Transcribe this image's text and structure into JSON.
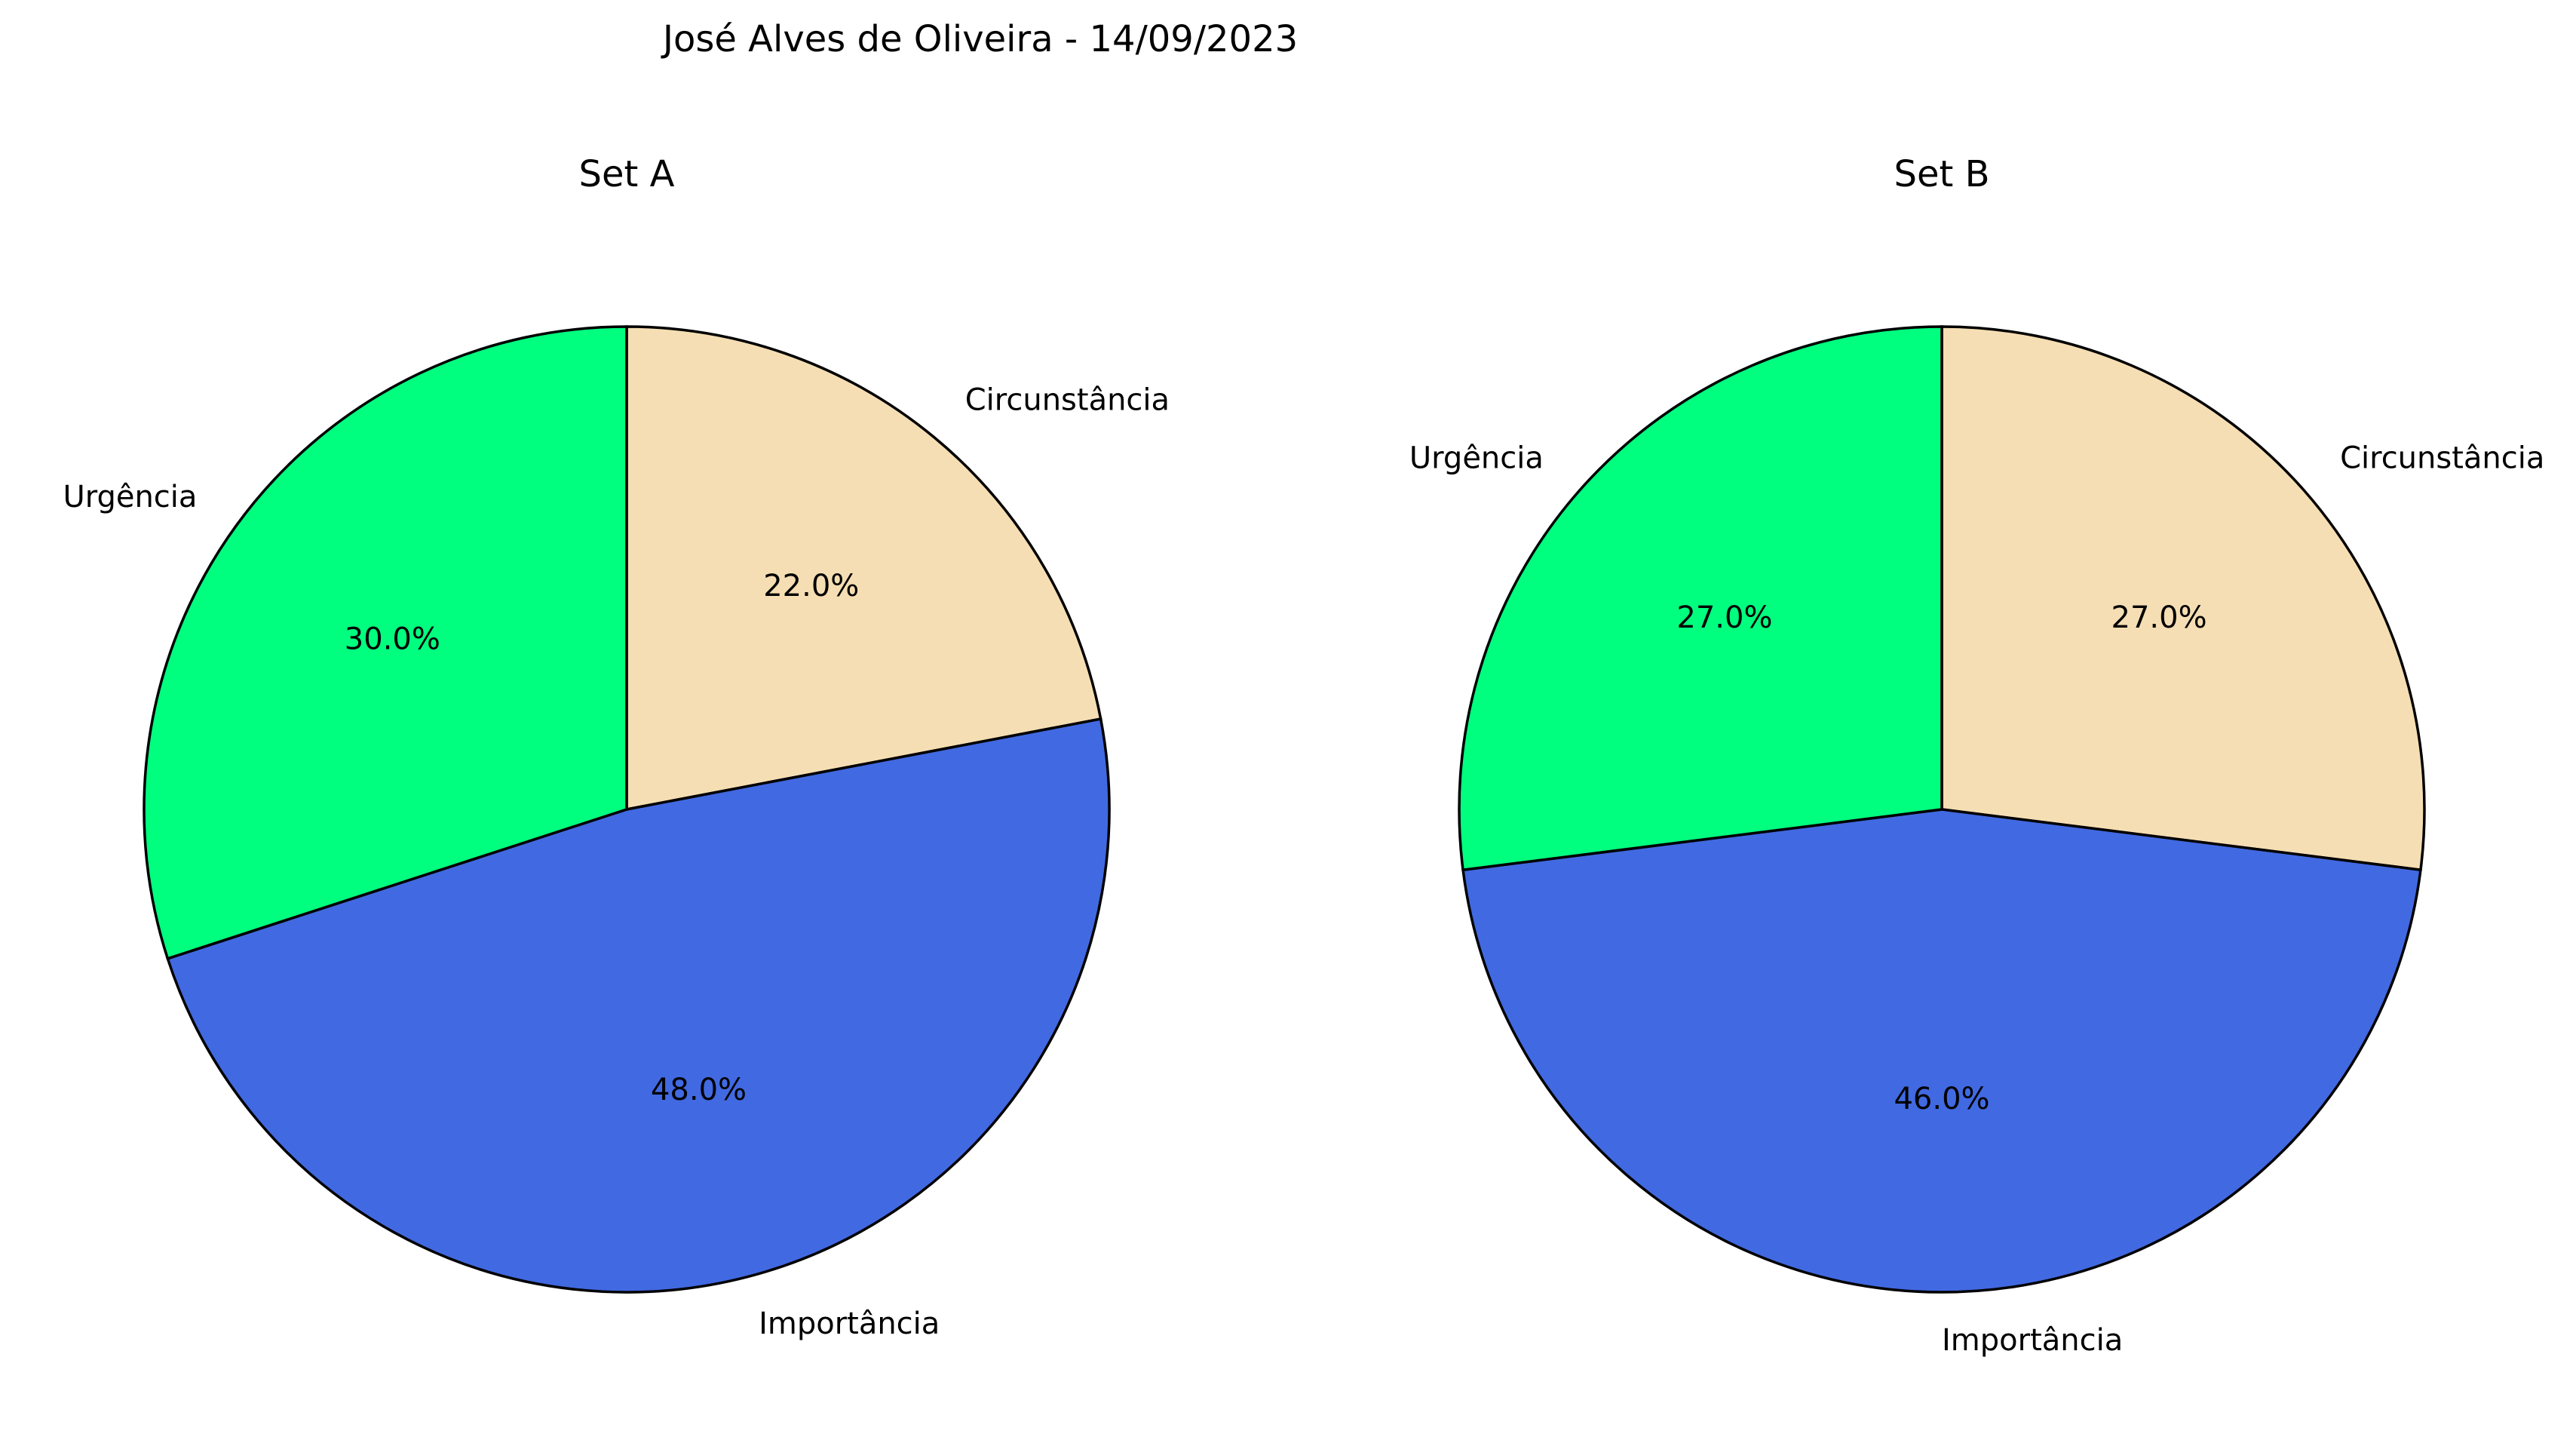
{
  "chart_data": {
    "title": "José Alves de Oliveira - 14/09/2023",
    "charts": [
      {
        "type": "pie",
        "title": "Set A",
        "labels": [
          "Circunstância",
          "Importância",
          "Urgência"
        ],
        "values": [
          22.0,
          48.0,
          30.0
        ],
        "percent_labels": [
          "22.0%",
          "48.0%",
          "30.0%"
        ],
        "colors": [
          "#F5DEB3",
          "#4169E1",
          "#00FF7F"
        ],
        "start_angle_deg": 90,
        "direction": "clockwise"
      },
      {
        "type": "pie",
        "title": "Set B",
        "labels": [
          "Circunstância",
          "Importância",
          "Urgência"
        ],
        "values": [
          27.0,
          46.0,
          27.0
        ],
        "percent_labels": [
          "27.0%",
          "46.0%",
          "27.0%"
        ],
        "colors": [
          "#F5DEB3",
          "#4169E1",
          "#00FF7F"
        ],
        "start_angle_deg": 90,
        "direction": "clockwise"
      }
    ]
  }
}
